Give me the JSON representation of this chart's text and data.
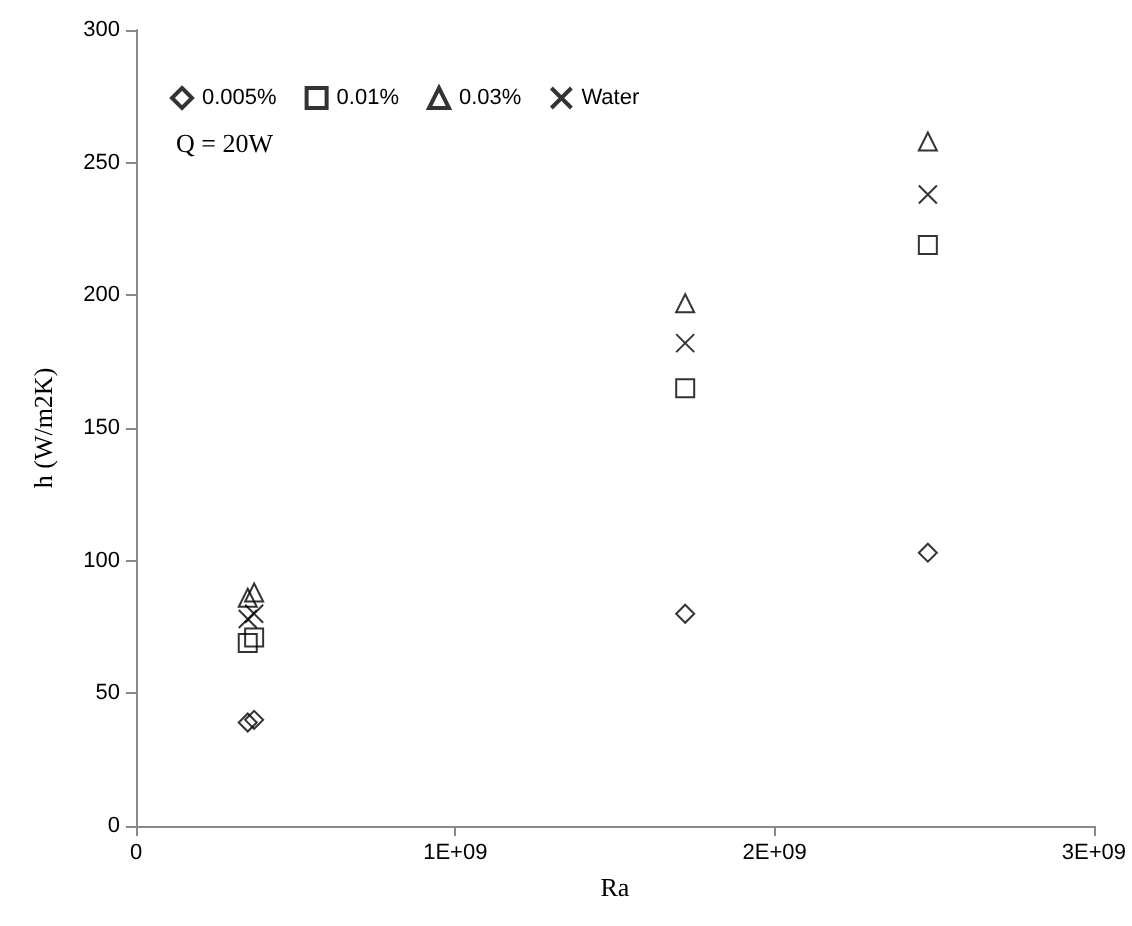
{
  "chart_data": {
    "type": "scatter",
    "xlabel": "Ra",
    "ylabel": "h (W/m2K)",
    "annotations": [
      "Q = 20W"
    ],
    "xlim": [
      0,
      3000000000
    ],
    "xticks": [
      0,
      {
        "value": 1000000000,
        "label": "1E+09"
      },
      {
        "value": 2000000000,
        "label": "2E+09"
      },
      {
        "value": 3000000000,
        "label": "3E+09"
      }
    ],
    "ylim": [
      0,
      300
    ],
    "yticks": [
      0,
      50,
      100,
      150,
      200,
      250,
      300
    ],
    "grid": false,
    "legend": "top left",
    "series": [
      {
        "name": "0.005%",
        "color": "#000000",
        "marker": "diamond",
        "x": [
          350000000,
          370000000,
          1720000000,
          2480000000
        ],
        "values": [
          39,
          40,
          80,
          103
        ]
      },
      {
        "name": "0.01%",
        "color": "#000000",
        "marker": "square",
        "x": [
          350000000,
          370000000,
          1720000000,
          2480000000
        ],
        "values": [
          69,
          71,
          165,
          219
        ]
      },
      {
        "name": "0.03%",
        "color": "#000000",
        "marker": "triangle",
        "x": [
          350000000,
          370000000,
          1720000000,
          2480000000
        ],
        "values": [
          86,
          88,
          197,
          258
        ]
      },
      {
        "name": "Water",
        "color": "#000000",
        "marker": "cross",
        "x": [
          350000000,
          370000000,
          1720000000,
          2480000000
        ],
        "values": [
          78,
          80,
          182,
          238
        ]
      }
    ]
  }
}
